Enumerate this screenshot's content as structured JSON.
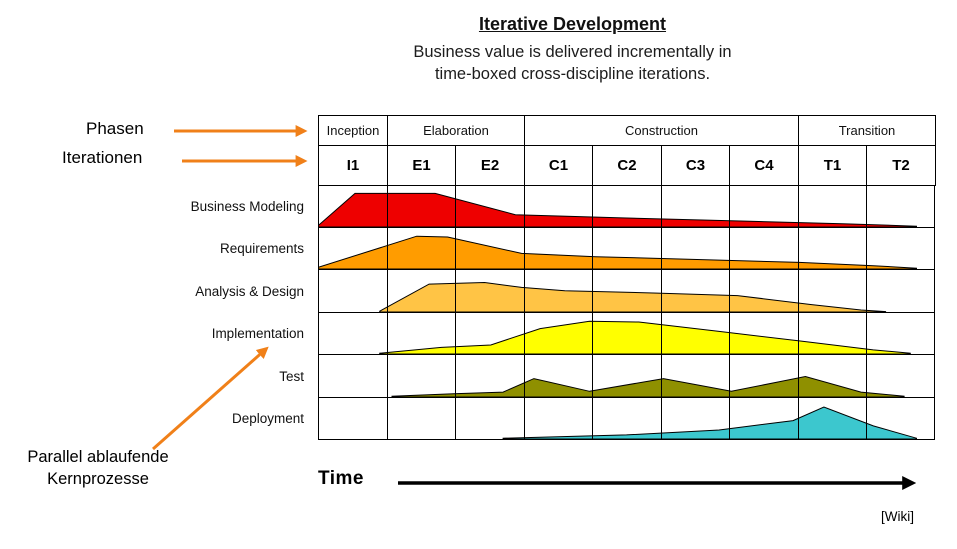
{
  "header": {
    "title": "Iterative Development",
    "subtitle_line1": "Business value is delivered incrementally in",
    "subtitle_line2": "time-boxed cross-discipline iterations."
  },
  "annotations": {
    "phasen_label": "Phasen",
    "iterationen_label": "Iterationen",
    "parallel_label_line1": "Parallel ablaufende",
    "parallel_label_line2": "Kernprozesse",
    "time_label": "Time",
    "source_label": "[Wiki]",
    "arrow_color": "#F08019"
  },
  "chart": {
    "phases": [
      {
        "label": "Inception",
        "iterations": [
          "I1"
        ]
      },
      {
        "label": "Elaboration",
        "iterations": [
          "E1",
          "E2"
        ]
      },
      {
        "label": "Construction",
        "iterations": [
          "C1",
          "C2",
          "C3",
          "C4"
        ]
      },
      {
        "label": "Transition",
        "iterations": [
          "T1",
          "T2"
        ]
      }
    ],
    "disciplines": [
      {
        "label": "Business Modeling",
        "color": "#EE0000",
        "curve": [
          [
            0,
            0.03
          ],
          [
            0.06,
            0.82
          ],
          [
            0.19,
            0.82
          ],
          [
            0.32,
            0.3
          ],
          [
            0.5,
            0.22
          ],
          [
            0.7,
            0.14
          ],
          [
            0.85,
            0.08
          ],
          [
            0.97,
            0.02
          ]
        ]
      },
      {
        "label": "Requirements",
        "color": "#FF9C00",
        "curve": [
          [
            0,
            0.04
          ],
          [
            0.16,
            0.8
          ],
          [
            0.21,
            0.78
          ],
          [
            0.33,
            0.38
          ],
          [
            0.45,
            0.3
          ],
          [
            0.6,
            0.24
          ],
          [
            0.78,
            0.16
          ],
          [
            0.9,
            0.08
          ],
          [
            0.97,
            0.02
          ]
        ]
      },
      {
        "label": "Analysis & Design",
        "color": "#FFC445",
        "curve": [
          [
            0.1,
            0.02
          ],
          [
            0.18,
            0.68
          ],
          [
            0.27,
            0.72
          ],
          [
            0.33,
            0.6
          ],
          [
            0.4,
            0.52
          ],
          [
            0.55,
            0.46
          ],
          [
            0.68,
            0.4
          ],
          [
            0.8,
            0.18
          ],
          [
            0.88,
            0.05
          ],
          [
            0.92,
            0.01
          ]
        ]
      },
      {
        "label": "Implementation",
        "color": "#FFFF00",
        "curve": [
          [
            0.1,
            0.02
          ],
          [
            0.2,
            0.16
          ],
          [
            0.28,
            0.22
          ],
          [
            0.36,
            0.62
          ],
          [
            0.44,
            0.8
          ],
          [
            0.52,
            0.78
          ],
          [
            0.65,
            0.55
          ],
          [
            0.78,
            0.32
          ],
          [
            0.9,
            0.1
          ],
          [
            0.96,
            0.02
          ]
        ]
      },
      {
        "label": "Test",
        "color": "#8F9000",
        "curve": [
          [
            0.12,
            0.02
          ],
          [
            0.22,
            0.08
          ],
          [
            0.3,
            0.12
          ],
          [
            0.35,
            0.45
          ],
          [
            0.44,
            0.14
          ],
          [
            0.56,
            0.45
          ],
          [
            0.67,
            0.14
          ],
          [
            0.79,
            0.5
          ],
          [
            0.88,
            0.12
          ],
          [
            0.95,
            0.02
          ]
        ]
      },
      {
        "label": "Deployment",
        "color": "#3CC7CE",
        "curve": [
          [
            0.3,
            0.02
          ],
          [
            0.5,
            0.1
          ],
          [
            0.65,
            0.22
          ],
          [
            0.77,
            0.45
          ],
          [
            0.82,
            0.78
          ],
          [
            0.9,
            0.32
          ],
          [
            0.97,
            0.02
          ]
        ]
      }
    ]
  }
}
